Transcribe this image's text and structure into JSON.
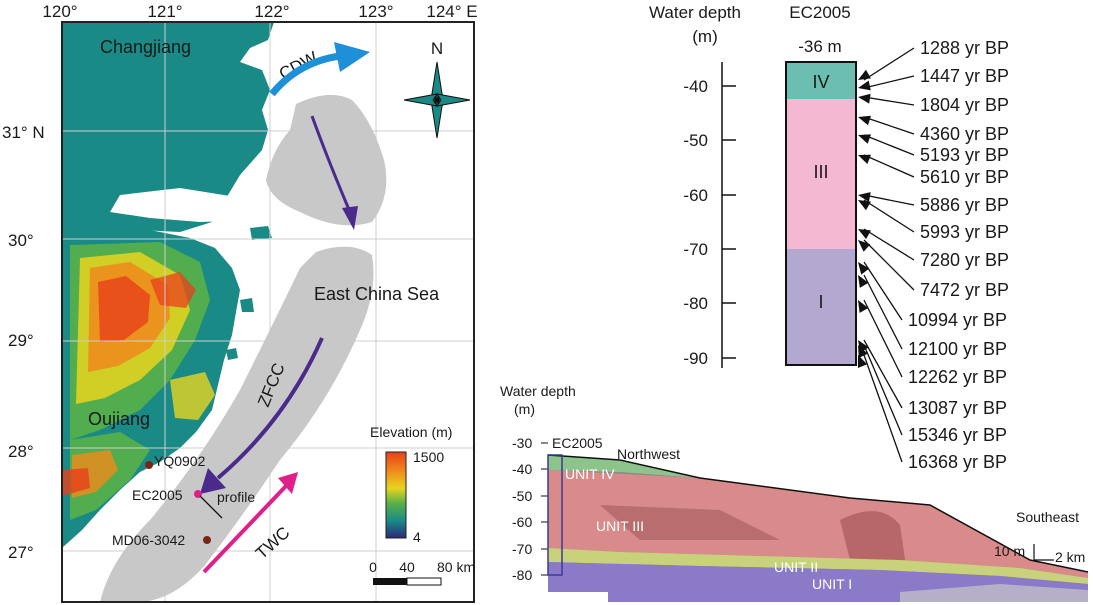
{
  "map": {
    "lon_labels": [
      "120°",
      "121°",
      "122°",
      "123°",
      "124° E"
    ],
    "lat_labels": [
      "31° N",
      "30°",
      "29°",
      "28°",
      "27°"
    ],
    "labels": {
      "changjiang": "Changjiang",
      "cdw": "CDW",
      "east_china_sea": "East China Sea",
      "zfcc": "ZFCC",
      "oujiang": "Oujiang",
      "twc": "TWC",
      "yq0902": "YQ0902",
      "ec2005": "EC2005",
      "profile": "profile",
      "md06": "MD06-3042",
      "north": "N"
    },
    "legend": {
      "title": "Elevation (m)",
      "max": "1500",
      "min": "4"
    },
    "scale": {
      "labels": [
        "0",
        "40",
        "80 km"
      ]
    },
    "colors": {
      "sea": "#ffffff",
      "lowland": "#1a8a86",
      "current_grey": "#c8c8c8",
      "zfcc_arrow": "#4a2a8a",
      "cdw_arrow": "#1e90d8",
      "twc_arrow": "#e0208a",
      "site_dot": "#7a2418",
      "ec2005_dot": "#e0208a"
    }
  },
  "core": {
    "y_title_1": "Water depth",
    "y_title_2": "(m)",
    "name": "EC2005",
    "top_depth": "-36 m",
    "ticks": [
      "-40",
      "-50",
      "-60",
      "-70",
      "-80",
      "-90"
    ],
    "units": [
      {
        "label": "IV",
        "color": "#6cbfb0"
      },
      {
        "label": "III",
        "color": "#f5b8d2"
      },
      {
        "label": "I",
        "color": "#b3a8d0"
      }
    ],
    "ages": [
      "1288 yr BP",
      "1447 yr BP",
      "1804 yr BP",
      "4360 yr BP",
      "5193 yr BP",
      "5610 yr BP",
      "5886 yr BP",
      "5993 yr BP",
      "7280 yr BP",
      "7472 yr BP",
      "10994 yr BP",
      "12100 yr BP",
      "12262 yr BP",
      "13087 yr BP",
      "15346 yr BP",
      "16368 yr BP"
    ]
  },
  "profile": {
    "y_title_1": "Water depth",
    "y_title_2": "(m)",
    "ticks": [
      "-30",
      "-40",
      "-50",
      "-60",
      "-70",
      "-80"
    ],
    "site": "EC2005",
    "northwest": "Northwest",
    "southeast": "Southeast",
    "units": [
      "UNIT IV",
      "UNIT III",
      "UNIT II",
      "UNIT I"
    ],
    "scale_v": "10 m",
    "scale_h": "2 km",
    "colors": {
      "unit4": "#8cc48c",
      "unit3": "#d98a8a",
      "unit2": "#c8d27a",
      "unit1": "#8a7ac8"
    }
  }
}
